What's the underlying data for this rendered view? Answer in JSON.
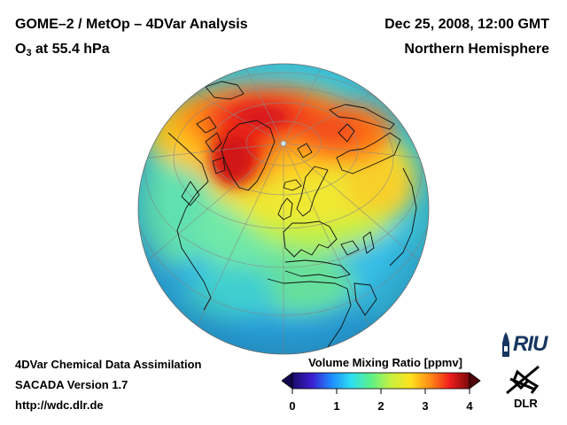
{
  "header": {
    "title": "GOME–2 / MetOp – 4DVar Analysis",
    "subtitle_prefix": "O",
    "subtitle_sub": "3",
    "subtitle_rest": " at 55.4 hPa",
    "date": "Dec 25, 2008, 12:00 GMT",
    "region": "Northern Hemisphere"
  },
  "footer": {
    "line1": "4DVar Chemical Data Assimilation",
    "line2": "SACADA Version 1.7",
    "line3": "http://wdc.dlr.de"
  },
  "colorbar": {
    "title": "Volume Mixing Ratio [ppmv]",
    "ticks": [
      "0",
      "1",
      "2",
      "3",
      "4"
    ],
    "range": [
      0,
      4
    ],
    "colors": [
      "#1b0a6b",
      "#3a1fd0",
      "#1e8cff",
      "#2de0f0",
      "#5cf088",
      "#c8f040",
      "#ffe21e",
      "#ff8a18",
      "#f01d1d",
      "#7a0a0a"
    ]
  },
  "logos": {
    "riu": "RIU",
    "dlr": "DLR"
  },
  "map": {
    "projection": "orthographic",
    "hemisphere": "north",
    "features": [
      "coastlines",
      "graticule",
      "ozone-field"
    ]
  }
}
